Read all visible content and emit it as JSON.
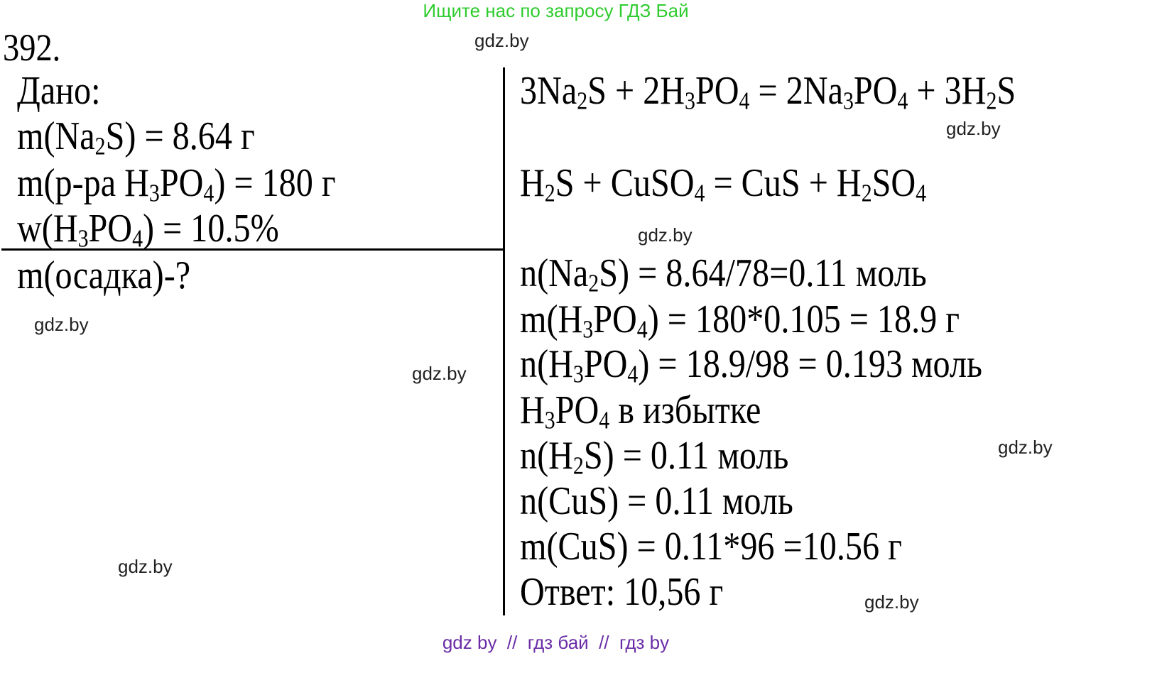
{
  "header": {
    "text": "Ищите нас по запросу ГДЗ Бай",
    "color": "#2ecc2e"
  },
  "footer": {
    "text": "gdz by  //  гдз бай  //  гдз by",
    "color": "#6a2ca6"
  },
  "problem_number": "392.",
  "given": {
    "title": "Дано:",
    "lines": [
      [
        {
          "t": "m(Na"
        },
        {
          "s": "2"
        },
        {
          "t": "S) = 8.64 г"
        }
      ],
      [
        {
          "t": "m(р-ра H"
        },
        {
          "s": "3"
        },
        {
          "t": "PO"
        },
        {
          "s": "4"
        },
        {
          "t": ") = 180 г"
        }
      ],
      [
        {
          "t": "w(H"
        },
        {
          "s": "3"
        },
        {
          "t": "PO"
        },
        {
          "s": "4"
        },
        {
          "t": ") = 10.5%"
        }
      ]
    ],
    "find": [
      {
        "t": "m(осадка)-?"
      }
    ]
  },
  "solution": [
    [
      {
        "t": "3Na"
      },
      {
        "s": "2"
      },
      {
        "t": "S + 2H"
      },
      {
        "s": "3"
      },
      {
        "t": "PO"
      },
      {
        "s": "4"
      },
      {
        "t": " = 2Na"
      },
      {
        "s": "3"
      },
      {
        "t": "PO"
      },
      {
        "s": "4"
      },
      {
        "t": " + 3H"
      },
      {
        "s": "2"
      },
      {
        "t": "S"
      }
    ],
    [
      {
        "t": "H"
      },
      {
        "s": "2"
      },
      {
        "t": "S + CuSO"
      },
      {
        "s": "4"
      },
      {
        "t": " = CuS + H"
      },
      {
        "s": "2"
      },
      {
        "t": "SO"
      },
      {
        "s": "4"
      }
    ],
    [
      {
        "t": "n(Na"
      },
      {
        "s": "2"
      },
      {
        "t": "S) = 8.64/78=0.11 моль"
      }
    ],
    [
      {
        "t": "m(H"
      },
      {
        "s": "3"
      },
      {
        "t": "PO"
      },
      {
        "s": "4"
      },
      {
        "t": ") = 180*0.105 = 18.9 г"
      }
    ],
    [
      {
        "t": "n(H"
      },
      {
        "s": "3"
      },
      {
        "t": "PO"
      },
      {
        "s": "4"
      },
      {
        "t": ") = 18.9/98 = 0.193 моль"
      }
    ],
    [
      {
        "t": "H"
      },
      {
        "s": "3"
      },
      {
        "t": "PO"
      },
      {
        "s": "4"
      },
      {
        "t": " в избытке"
      }
    ],
    [
      {
        "t": "n(H"
      },
      {
        "s": "2"
      },
      {
        "t": "S) = 0.11 моль"
      }
    ],
    [
      {
        "t": "n(CuS) = 0.11 моль"
      }
    ],
    [
      {
        "t": "m(CuS) = 0.11*96 =10.56 г"
      }
    ],
    [
      {
        "t": "Ответ: 10,56 г"
      }
    ]
  ],
  "watermark": "gdz.by"
}
